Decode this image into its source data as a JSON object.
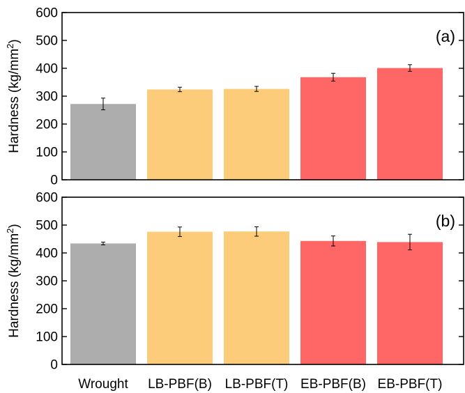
{
  "chart_data": [
    {
      "type": "bar",
      "panel_label": "(a)",
      "categories": [
        "Wrought",
        "LB-PBF(B)",
        "LB-PBF(T)",
        "EB-PBF(B)",
        "EB-PBF(T)"
      ],
      "values": [
        272,
        324,
        326,
        368,
        401
      ],
      "errors": [
        21,
        8,
        9,
        14,
        12
      ],
      "colors": [
        "#adadad",
        "#fdcc7a",
        "#fdcc7a",
        "#ff6666",
        "#ff6666"
      ],
      "ylabel_main": "Hardness (kg/mm",
      "ylabel_sup": "2",
      "ylabel_tail": ")",
      "ylim": [
        0,
        600
      ],
      "yticks": [
        "0",
        "100",
        "200",
        "300",
        "400",
        "500",
        "600"
      ],
      "show_xticklabels": false,
      "grid": false
    },
    {
      "type": "bar",
      "panel_label": "(b)",
      "categories": [
        "Wrought",
        "LB-PBF(B)",
        "LB-PBF(T)",
        "EB-PBF(B)",
        "EB-PBF(T)"
      ],
      "values": [
        434,
        476,
        477,
        443,
        439
      ],
      "errors": [
        5,
        17,
        17,
        18,
        28
      ],
      "colors": [
        "#adadad",
        "#fdcc7a",
        "#fdcc7a",
        "#ff6666",
        "#ff6666"
      ],
      "ylabel_main": "Hardness (kg/mm",
      "ylabel_sup": "2",
      "ylabel_tail": ")",
      "ylim": [
        0,
        600
      ],
      "yticks": [
        "0",
        "100",
        "200",
        "300",
        "400",
        "500",
        "600"
      ],
      "show_xticklabels": true,
      "grid": false
    }
  ]
}
